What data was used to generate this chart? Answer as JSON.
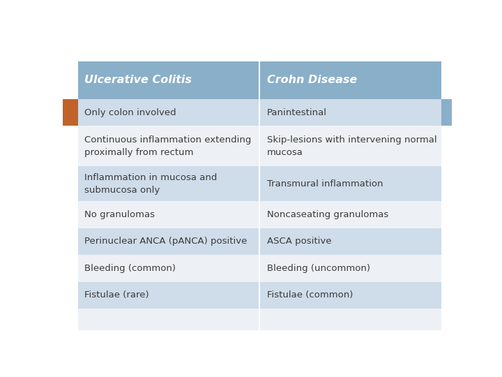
{
  "col1_header": "Ulcerative Colitis",
  "col2_header": "Crohn Disease",
  "rows": [
    [
      "Only colon involved",
      "Panintestinal"
    ],
    [
      "Continuous inflammation extending\nproximally from rectum",
      "Skip-lesions with intervening normal\nmucosa"
    ],
    [
      "Inflammation in mucosa and\nsubmucosa only",
      "Transmural inflammation"
    ],
    [
      "No granulomas",
      "Noncaseating granulomas"
    ],
    [
      "Perinuclear ANCA (pANCA) positive",
      "ASCA positive"
    ],
    [
      "Bleeding (common)",
      "Bleeding (uncommon)"
    ],
    [
      "Fistulae (rare)",
      "Fistulae (common)"
    ],
    [
      "",
      ""
    ]
  ],
  "header_bg": "#8aafc8",
  "header_text": "#ffffff",
  "row_bg_light": "#cfdce9",
  "row_bg_white": "#f0f4f8",
  "body_text": "#3a3a3a",
  "left_bar_color": "#c0622a",
  "right_bar_color": "#8aafc8",
  "fig_bg": "#ffffff",
  "header_fontsize": 11.5,
  "body_fontsize": 9.5,
  "col_split": 0.5
}
